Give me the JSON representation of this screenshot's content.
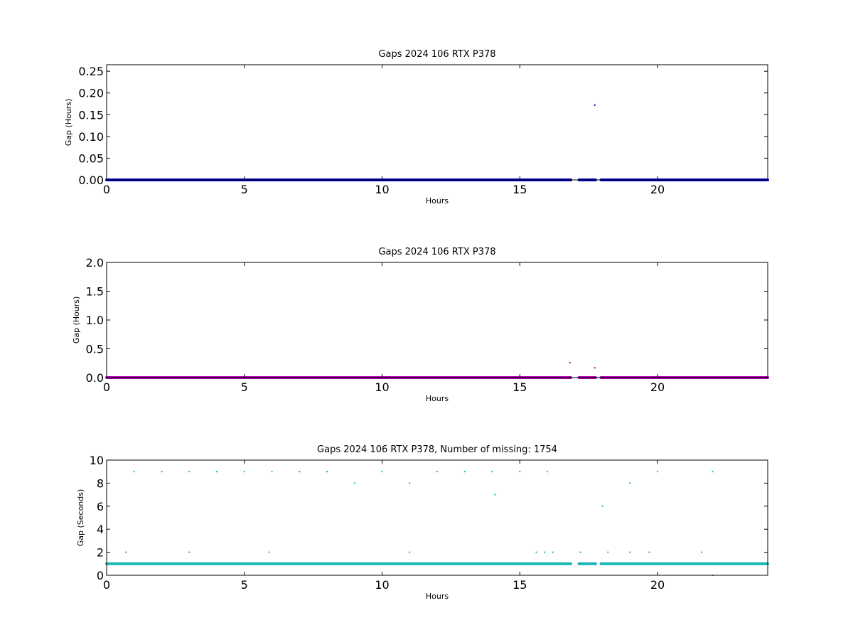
{
  "chart_data": [
    {
      "type": "scatter",
      "title": "Gaps 2024 106 RTX  P378",
      "xlabel": "Hours",
      "ylabel": "Gap (Hours)",
      "xlim": [
        0,
        24
      ],
      "ylim": [
        0,
        0.265
      ],
      "xticks": [
        0,
        5,
        10,
        15,
        20
      ],
      "yticks": [
        0.0,
        0.05,
        0.1,
        0.15,
        0.2,
        0.25
      ],
      "ytick_labels": [
        "0.00",
        "0.05",
        "0.10",
        "0.15",
        "0.20",
        "0.25"
      ],
      "color": "#0000cc",
      "baseline": {
        "value": 0.0,
        "segments": [
          [
            0,
            16.85
          ],
          [
            17.15,
            17.75
          ],
          [
            17.95,
            24
          ]
        ]
      },
      "points": [
        {
          "x": 17.72,
          "y": 0.172
        }
      ]
    },
    {
      "type": "scatter",
      "title": "Gaps 2024 106 RTX  P378",
      "xlabel": "Hours",
      "ylabel": "Gap (Hours)",
      "xlim": [
        0,
        24
      ],
      "ylim": [
        0,
        2.0
      ],
      "xticks": [
        0,
        5,
        10,
        15,
        20
      ],
      "yticks": [
        0.0,
        0.5,
        1.0,
        1.5,
        2.0
      ],
      "ytick_labels": [
        "0.0",
        "0.5",
        "1.0",
        "1.5",
        "2.0"
      ],
      "color": "#aa00aa",
      "baseline": {
        "value": 0.0,
        "segments": [
          [
            0,
            16.85
          ],
          [
            17.15,
            17.75
          ],
          [
            17.95,
            24
          ]
        ]
      },
      "points": [
        {
          "x": 16.82,
          "y": 0.26
        },
        {
          "x": 17.72,
          "y": 0.17
        }
      ]
    },
    {
      "type": "scatter",
      "title": "Gaps 2024 106 RTX  P378, Number of missing: 1754",
      "xlabel": "Hours",
      "ylabel": "Gap (Seconds)",
      "xlim": [
        0,
        24
      ],
      "ylim": [
        0,
        10
      ],
      "xticks": [
        0,
        5,
        10,
        15,
        20
      ],
      "yticks": [
        0,
        2,
        4,
        6,
        8,
        10
      ],
      "ytick_labels": [
        "0",
        "2",
        "4",
        "6",
        "8",
        "10"
      ],
      "color": "#1ab5b5",
      "baseline": {
        "value": 1.0,
        "segments": [
          [
            0,
            16.85
          ],
          [
            17.15,
            17.75
          ],
          [
            17.95,
            24
          ]
        ]
      },
      "points": [
        {
          "x": 0.7,
          "y": 2
        },
        {
          "x": 1.0,
          "y": 9
        },
        {
          "x": 2.0,
          "y": 9
        },
        {
          "x": 3.0,
          "y": 9
        },
        {
          "x": 3.0,
          "y": 2
        },
        {
          "x": 4.0,
          "y": 9
        },
        {
          "x": 5.0,
          "y": 9
        },
        {
          "x": 5.9,
          "y": 2
        },
        {
          "x": 6.0,
          "y": 9
        },
        {
          "x": 7.0,
          "y": 9
        },
        {
          "x": 8.0,
          "y": 9
        },
        {
          "x": 9.0,
          "y": 8
        },
        {
          "x": 10.0,
          "y": 9
        },
        {
          "x": 11.0,
          "y": 8
        },
        {
          "x": 11.0,
          "y": 2
        },
        {
          "x": 12.0,
          "y": 9
        },
        {
          "x": 13.0,
          "y": 9
        },
        {
          "x": 14.0,
          "y": 9
        },
        {
          "x": 14.1,
          "y": 7
        },
        {
          "x": 15.0,
          "y": 9
        },
        {
          "x": 15.6,
          "y": 2
        },
        {
          "x": 15.9,
          "y": 2
        },
        {
          "x": 16.0,
          "y": 9
        },
        {
          "x": 16.2,
          "y": 2
        },
        {
          "x": 17.2,
          "y": 2
        },
        {
          "x": 18.0,
          "y": 6
        },
        {
          "x": 18.2,
          "y": 2
        },
        {
          "x": 19.0,
          "y": 8
        },
        {
          "x": 19.0,
          "y": 2
        },
        {
          "x": 19.7,
          "y": 2
        },
        {
          "x": 20.0,
          "y": 9
        },
        {
          "x": 21.6,
          "y": 2
        },
        {
          "x": 22.0,
          "y": 9
        },
        {
          "x": 22.0,
          "y": 0
        }
      ]
    }
  ]
}
